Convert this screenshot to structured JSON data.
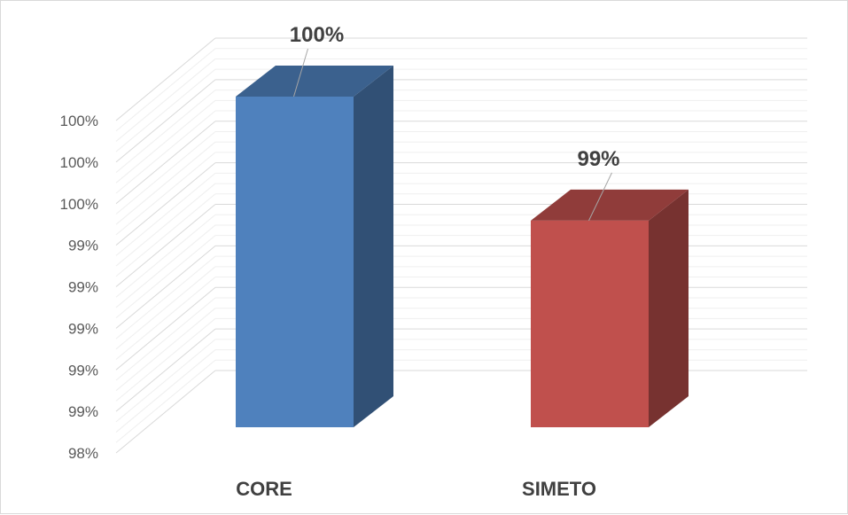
{
  "chart_data": {
    "type": "bar",
    "style": "3d-column",
    "categories": [
      "CORE",
      "SIMETO"
    ],
    "series": [
      {
        "values": [
          1.0,
          0.9925
        ],
        "colors": [
          "#4f81bd",
          "#c0504d"
        ]
      }
    ],
    "data_labels": [
      "100%",
      "99%"
    ],
    "y_tick_labels": [
      "98%",
      "99%",
      "99%",
      "99%",
      "99%",
      "99%",
      "100%",
      "100%",
      "100%"
    ],
    "ylim": [
      0.98,
      1.0
    ],
    "grid": true,
    "legend": "none",
    "title": "",
    "xlabel": "",
    "ylabel": ""
  }
}
